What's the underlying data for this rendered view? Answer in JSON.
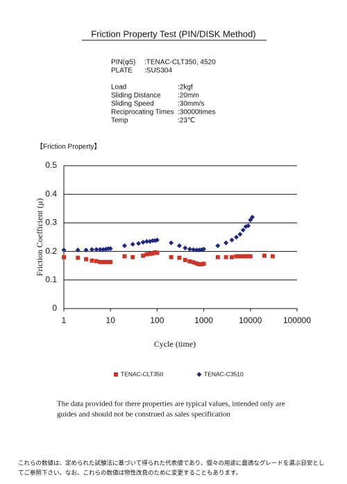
{
  "title": "Friction Property Test (PIN/DISK Method)",
  "materials": [
    {
      "label": "PIN(φ5)",
      "value": ":TENAC-CLT350, 4520"
    },
    {
      "label": "PLATE",
      "value": ":SUS304"
    }
  ],
  "conditions": [
    {
      "label": "Load",
      "value": ":2kgf"
    },
    {
      "label": "Sliding Distance",
      "value": ":20mm"
    },
    {
      "label": "Sliding Speed",
      "value": ":30mm/s"
    },
    {
      "label": "Reciprocating Times",
      "value": ":30000times"
    },
    {
      "label": "Temp",
      "value": ":23℃"
    }
  ],
  "section_title": "【Friction Property】",
  "chart_data": {
    "type": "scatter",
    "xlabel": "Cycle  (time)",
    "ylabel": "Friction Coefficient (μ)",
    "xscale": "log",
    "xlim": [
      1,
      100000
    ],
    "xticks": [
      1,
      10,
      100,
      1000,
      10000,
      100000
    ],
    "ylim": [
      0,
      0.5
    ],
    "yticks": [
      0,
      0.1,
      0.2,
      0.3,
      0.4,
      0.5
    ],
    "grid": true,
    "series": [
      {
        "name": "TENAC-CLT350",
        "color": "#c8372a",
        "marker": "square",
        "x": [
          1,
          2,
          3,
          4,
          5,
          6,
          7,
          8,
          9,
          10,
          20,
          30,
          50,
          60,
          70,
          80,
          90,
          100,
          200,
          300,
          400,
          500,
          600,
          700,
          800,
          900,
          1000,
          2000,
          3000,
          4000,
          5000,
          6000,
          7000,
          8000,
          9000,
          10000,
          20000,
          30000
        ],
        "values": [
          0.18,
          0.178,
          0.173,
          0.168,
          0.166,
          0.163,
          0.163,
          0.163,
          0.163,
          0.163,
          0.183,
          0.18,
          0.185,
          0.19,
          0.192,
          0.193,
          0.197,
          0.195,
          0.18,
          0.178,
          0.17,
          0.165,
          0.162,
          0.158,
          0.155,
          0.155,
          0.157,
          0.18,
          0.18,
          0.18,
          0.183,
          0.183,
          0.183,
          0.183,
          0.183,
          0.183,
          0.185,
          0.183
        ]
      },
      {
        "name": "TENAC-C3510",
        "color": "#1f2a7a",
        "marker": "diamond",
        "x": [
          1,
          2,
          3,
          4,
          5,
          6,
          7,
          8,
          9,
          10,
          20,
          30,
          40,
          50,
          60,
          70,
          80,
          90,
          100,
          200,
          300,
          400,
          500,
          600,
          700,
          800,
          900,
          1000,
          2000,
          3000,
          4000,
          5000,
          6000,
          7000,
          8000,
          9000,
          10000,
          11000
        ],
        "values": [
          0.205,
          0.205,
          0.205,
          0.207,
          0.207,
          0.207,
          0.207,
          0.208,
          0.21,
          0.21,
          0.22,
          0.225,
          0.228,
          0.232,
          0.235,
          0.235,
          0.238,
          0.238,
          0.24,
          0.23,
          0.22,
          0.212,
          0.208,
          0.206,
          0.205,
          0.205,
          0.206,
          0.208,
          0.22,
          0.23,
          0.24,
          0.25,
          0.26,
          0.275,
          0.287,
          0.29,
          0.31,
          0.32
        ]
      }
    ]
  },
  "note": [
    "The data provided for there properties are typical values, intended only are",
    "guides and should not be construed as sales specification"
  ],
  "japanese_note": [
    "これらの数値は、定められた試験法に基づいて得られた代表値であり、個々の用途に最適なグレードを選ぶ目安とし",
    "てご参照下さい。なお、これらの数値は物性改良のために変更することもあります。"
  ]
}
